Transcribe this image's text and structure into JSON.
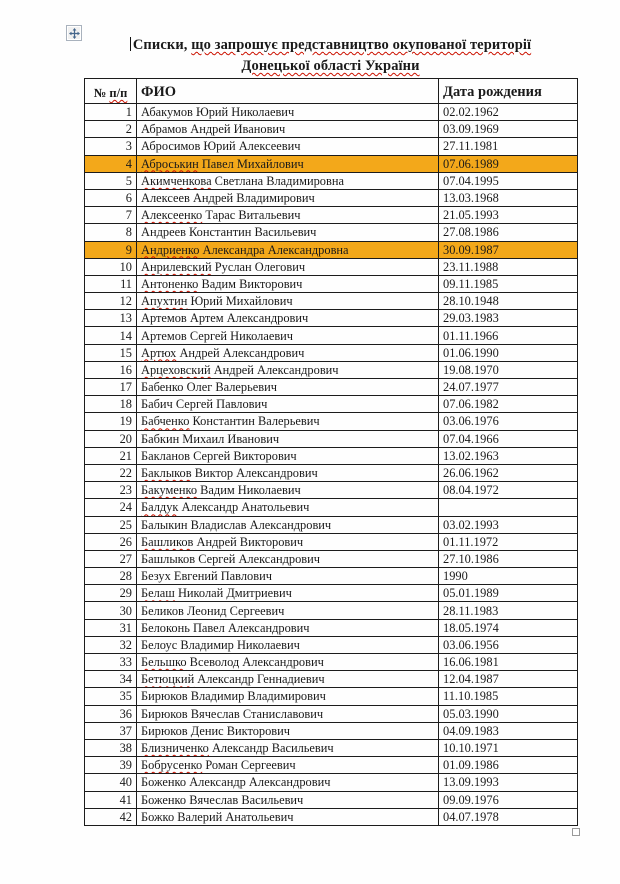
{
  "document": {
    "title_line1_word1": "Списки,",
    "title_line1_rest": "що запрошує представництво окупованої території",
    "title_line2": "Донецької області України"
  },
  "table": {
    "headers": {
      "num_prefix": "№",
      "num_suffix": "п/п",
      "name": "ФИО",
      "dob": "Дата рождения"
    },
    "rows": [
      {
        "num": "1",
        "name": "Абакумов Юрий Николаевич",
        "dob": "02.02.1962",
        "misspelled": false,
        "highlighted": false
      },
      {
        "num": "2",
        "name": "Абрамов Андрей Иванович",
        "dob": "03.09.1969",
        "misspelled": false,
        "highlighted": false
      },
      {
        "num": "3",
        "name": "Абросимов Юрий Алексеевич",
        "dob": "27.11.1981",
        "misspelled": false,
        "highlighted": false
      },
      {
        "num": "4",
        "name": "Аброськин Павел Михайлович",
        "dob": "07.06.1989",
        "misspelled": true,
        "highlighted": true
      },
      {
        "num": "5",
        "name": "Акимченкова Светлана Владимировна",
        "dob": "07.04.1995",
        "misspelled": true,
        "highlighted": false
      },
      {
        "num": "6",
        "name": "Алексеев Андрей Владимирович",
        "dob": "13.03.1968",
        "misspelled": false,
        "highlighted": false
      },
      {
        "num": "7",
        "name": "Алексеенко Тарас Витальевич",
        "dob": "21.05.1993",
        "misspelled": true,
        "highlighted": false
      },
      {
        "num": "8",
        "name": "Андреев Константин Васильевич",
        "dob": "27.08.1986",
        "misspelled": false,
        "highlighted": false
      },
      {
        "num": "9",
        "name": "Андриенко Александра Александровна",
        "dob": "30.09.1987",
        "misspelled": true,
        "highlighted": true
      },
      {
        "num": "10",
        "name": "Анрилевский Руслан Олегович",
        "dob": "23.11.1988",
        "misspelled": true,
        "highlighted": false
      },
      {
        "num": "11",
        "name": "Антоненко Вадим Викторович",
        "dob": "09.11.1985",
        "misspelled": true,
        "highlighted": false
      },
      {
        "num": "12",
        "name": "Апухтин Юрий Михайлович",
        "dob": "28.10.1948",
        "misspelled": true,
        "highlighted": false
      },
      {
        "num": "13",
        "name": "Артемов Артем Александрович",
        "dob": "29.03.1983",
        "misspelled": false,
        "highlighted": false
      },
      {
        "num": "14",
        "name": "Артемов Сергей Николаевич",
        "dob": "01.11.1966",
        "misspelled": false,
        "highlighted": false
      },
      {
        "num": "15",
        "name": "Артюх Андрей Александрович",
        "dob": "01.06.1990",
        "misspelled": true,
        "highlighted": false
      },
      {
        "num": "16",
        "name": "Арцеховский Андрей Александрович",
        "dob": "19.08.1970",
        "misspelled": true,
        "highlighted": false
      },
      {
        "num": "17",
        "name": "Бабенко Олег Валерьевич",
        "dob": "24.07.1977",
        "misspelled": false,
        "highlighted": false
      },
      {
        "num": "18",
        "name": "Бабич Сергей Павлович",
        "dob": "07.06.1982",
        "misspelled": false,
        "highlighted": false
      },
      {
        "num": "19",
        "name": "Бабченко Константин Валерьевич",
        "dob": "03.06.1976",
        "misspelled": true,
        "highlighted": false
      },
      {
        "num": "20",
        "name": "Бабкин Михаил Иванович",
        "dob": "07.04.1966",
        "misspelled": false,
        "highlighted": false
      },
      {
        "num": "21",
        "name": "Бакланов Сергей Викторович",
        "dob": "13.02.1963",
        "misspelled": false,
        "highlighted": false
      },
      {
        "num": "22",
        "name": "Баклыков Виктор Александрович",
        "dob": "26.06.1962",
        "misspelled": true,
        "highlighted": false
      },
      {
        "num": "23",
        "name": "Бакуменко Вадим Николаевич",
        "dob": "08.04.1972",
        "misspelled": true,
        "highlighted": false
      },
      {
        "num": "24",
        "name": "Балдук Александр Анатольевич",
        "dob": "",
        "misspelled": true,
        "highlighted": false
      },
      {
        "num": "25",
        "name": "Балыкин Владислав Александрович",
        "dob": "03.02.1993",
        "misspelled": false,
        "highlighted": false
      },
      {
        "num": "26",
        "name": "Башликов Андрей Викторович",
        "dob": "01.11.1972",
        "misspelled": true,
        "highlighted": false
      },
      {
        "num": "27",
        "name": "Башлыков Сергей Александрович",
        "dob": "27.10.1986",
        "misspelled": false,
        "highlighted": false
      },
      {
        "num": "28",
        "name": "Безух Евгений Павлович",
        "dob": "1990",
        "misspelled": false,
        "highlighted": false
      },
      {
        "num": "29",
        "name": "Белаш Николай Дмитриевич",
        "dob": "05.01.1989",
        "misspelled": true,
        "highlighted": false
      },
      {
        "num": "30",
        "name": "Беликов Леонид Сергеевич",
        "dob": "28.11.1983",
        "misspelled": false,
        "highlighted": false
      },
      {
        "num": "31",
        "name": "Белоконь Павел Александрович",
        "dob": "18.05.1974",
        "misspelled": false,
        "highlighted": false
      },
      {
        "num": "32",
        "name": "Белоус Владимир Николаевич",
        "dob": "03.06.1956",
        "misspelled": false,
        "highlighted": false
      },
      {
        "num": "33",
        "name": "Бельшко Всеволод Александрович",
        "dob": "16.06.1981",
        "misspelled": true,
        "highlighted": false
      },
      {
        "num": "34",
        "name": "Бетюцкий Александр Геннадиевич",
        "dob": "12.04.1987",
        "misspelled": true,
        "highlighted": false
      },
      {
        "num": "35",
        "name": "Бирюков Владимир Владимирович",
        "dob": "11.10.1985",
        "misspelled": false,
        "highlighted": false
      },
      {
        "num": "36",
        "name": "Бирюков Вячеслав Станиславович",
        "dob": "05.03.1990",
        "misspelled": false,
        "highlighted": false
      },
      {
        "num": "37",
        "name": "Бирюков Денис Викторович",
        "dob": "04.09.1983",
        "misspelled": false,
        "highlighted": false
      },
      {
        "num": "38",
        "name": "Близниченко Александр Васильевич",
        "dob": "10.10.1971",
        "misspelled": true,
        "highlighted": false
      },
      {
        "num": "39",
        "name": "Бобрусенко Роман Сергеевич",
        "dob": "01.09.1986",
        "misspelled": true,
        "highlighted": false
      },
      {
        "num": "40",
        "name": "Боженко Александр Александрович",
        "dob": "13.09.1993",
        "misspelled": false,
        "highlighted": false
      },
      {
        "num": "41",
        "name": "Боженко Вячеслав Васильевич",
        "dob": "09.09.1976",
        "misspelled": false,
        "highlighted": false
      },
      {
        "num": "42",
        "name": "Божко Валерий Анатольевич",
        "dob": "04.07.1978",
        "misspelled": false,
        "highlighted": false
      }
    ]
  },
  "icons": {
    "move_handle": "table-move-handle-icon",
    "resize_handle": "table-resize-handle"
  },
  "colors": {
    "highlight": "#F3A81A",
    "squiggle": "#CC1100",
    "border": "#1C1C1C"
  }
}
